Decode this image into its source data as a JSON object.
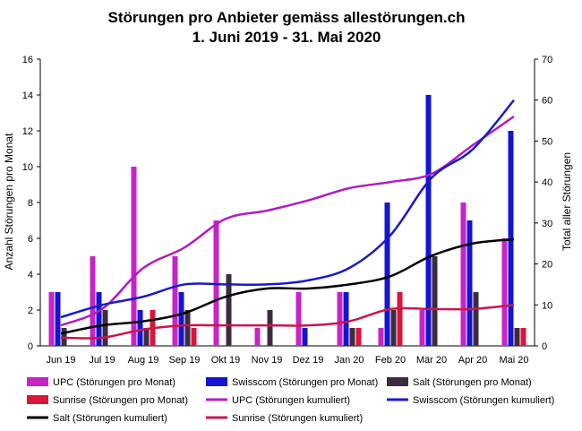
{
  "chart_data": {
    "type": "bar",
    "title": "Störungen pro Anbieter gemäss allestörungen.ch",
    "subtitle": "1. Juni 2019 - 31. Mai 2020",
    "ylabel": "Anzahl Störungen pro Monat",
    "y2label": "Total aller Störungen",
    "ylim": [
      0,
      16
    ],
    "y2lim": [
      0,
      70
    ],
    "yticks": [
      "0",
      "2",
      "4",
      "6",
      "8",
      "10",
      "12",
      "14",
      "16"
    ],
    "y2ticks": [
      "0",
      "10",
      "20",
      "30",
      "40",
      "50",
      "60",
      "70"
    ],
    "categories": [
      "Jun 19",
      "Jul 19",
      "Aug 19",
      "Sep 19",
      "Okt 19",
      "Nov 19",
      "Dez 19",
      "Jan 20",
      "Feb 20",
      "Mär 20",
      "Apr 20",
      "Mai 20"
    ],
    "grid": false,
    "legend_position": "bottom",
    "series": [
      {
        "name": "UPC  (Störungen pro Monat)",
        "type": "bar",
        "axis": "left",
        "color": "#c724c7",
        "values": [
          3,
          5,
          10,
          5,
          7,
          1,
          3,
          3,
          1,
          2,
          8,
          6
        ]
      },
      {
        "name": "Swisscom (Störungen pro Monat)",
        "type": "bar",
        "axis": "left",
        "color": "#1414d2",
        "values": [
          3,
          3,
          2,
          3,
          0,
          0,
          1,
          3,
          8,
          14,
          7,
          12
        ]
      },
      {
        "name": "Salt (Störungen pro Monat)",
        "type": "bar",
        "axis": "left",
        "color": "#3f2b3f",
        "values": [
          1,
          2,
          1,
          2,
          4,
          2,
          0,
          1,
          2,
          5,
          3,
          1
        ]
      },
      {
        "name": "Sunrise (Störungen pro Monat)",
        "type": "bar",
        "axis": "left",
        "color": "#dc143c",
        "values": [
          0,
          0,
          2,
          1,
          0,
          0,
          0,
          1,
          3,
          0,
          0,
          1
        ]
      },
      {
        "name": "UPC (Störungen kumuliert)",
        "type": "line",
        "axis": "right",
        "color": "#b01cc0",
        "values": [
          5,
          9,
          19,
          24,
          31,
          33,
          35.5,
          38.5,
          40,
          42,
          49,
          56
        ]
      },
      {
        "name": "Swisscom (Störungen kumuliert)",
        "type": "line",
        "axis": "right",
        "color": "#1a1ac8",
        "values": [
          7,
          10,
          12,
          15,
          15,
          15,
          16,
          19,
          27,
          41,
          48,
          60
        ]
      },
      {
        "name": "Salt (Störungen kumuliert)",
        "type": "line",
        "axis": "right",
        "color": "#000000",
        "values": [
          3,
          5,
          6,
          8,
          12,
          14,
          14,
          15,
          17,
          22,
          25,
          26
        ]
      },
      {
        "name": "Sunrise (Störungen kumuliert)",
        "type": "line",
        "axis": "right",
        "color": "#c8174c",
        "values": [
          2,
          2,
          4,
          5,
          5,
          5,
          5,
          6,
          9,
          9,
          9,
          10
        ]
      }
    ]
  }
}
